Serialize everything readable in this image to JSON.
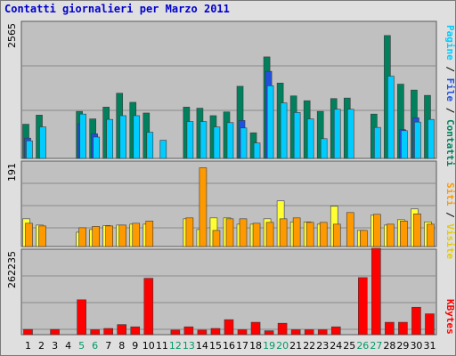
{
  "title": "Contatti giornalieri per Marzo 2011",
  "chart_data": [
    {
      "type": "bar",
      "panel": "top",
      "ymax_label": "2565",
      "right_label": {
        "pagine": "Pagine",
        "sep1": " / ",
        "file": "File",
        "sep2": " / ",
        "contatti": "Contatti"
      },
      "categories": [
        "1",
        "2",
        "3",
        "4",
        "5",
        "6",
        "7",
        "8",
        "9",
        "10",
        "11",
        "12",
        "13",
        "14",
        "15",
        "16",
        "17",
        "18",
        "19",
        "20",
        "21",
        "22",
        "23",
        "24",
        "25",
        "26",
        "27",
        "28",
        "29",
        "30",
        "31"
      ],
      "series": [
        {
          "name": "Contatti",
          "color": "#00805c",
          "values": [
            640,
            810,
            0,
            0,
            880,
            740,
            960,
            1220,
            1050,
            850,
            0,
            0,
            960,
            940,
            800,
            870,
            1350,
            480,
            1900,
            1410,
            1170,
            1080,
            880,
            1120,
            1130,
            0,
            830,
            2300,
            1390,
            1280,
            1180
          ]
        },
        {
          "name": "File",
          "color": "#2050e0",
          "values": [
            380,
            0,
            0,
            0,
            650,
            460,
            0,
            0,
            0,
            0,
            0,
            0,
            0,
            0,
            0,
            0,
            710,
            0,
            1630,
            0,
            0,
            0,
            0,
            0,
            0,
            0,
            0,
            0,
            540,
            760,
            0
          ]
        },
        {
          "name": "Pagine",
          "color": "#00ccff",
          "values": [
            330,
            590,
            0,
            0,
            830,
            400,
            730,
            800,
            800,
            490,
            340,
            0,
            690,
            690,
            590,
            670,
            570,
            290,
            1360,
            1040,
            860,
            740,
            370,
            920,
            920,
            0,
            580,
            1540,
            520,
            680,
            730
          ]
        }
      ]
    },
    {
      "type": "bar",
      "panel": "middle",
      "ymax_label": "191",
      "right_label": {
        "siti": "Siti",
        "sep": " / ",
        "visite": "Visite"
      },
      "categories": [
        "1",
        "2",
        "3",
        "4",
        "5",
        "6",
        "7",
        "8",
        "9",
        "10",
        "11",
        "12",
        "13",
        "14",
        "15",
        "16",
        "17",
        "18",
        "19",
        "20",
        "21",
        "22",
        "23",
        "24",
        "25",
        "26",
        "27",
        "28",
        "29",
        "30",
        "31"
      ],
      "series": [
        {
          "name": "Visite",
          "color": "#ffff33",
          "values": [
            62,
            48,
            0,
            0,
            32,
            38,
            47,
            48,
            50,
            50,
            0,
            0,
            62,
            38,
            64,
            64,
            50,
            50,
            62,
            102,
            55,
            55,
            50,
            90,
            0,
            36,
            70,
            48,
            60,
            84,
            55
          ]
        },
        {
          "name": "Siti",
          "color": "#ff9900",
          "values": [
            52,
            46,
            0,
            0,
            42,
            45,
            46,
            48,
            52,
            57,
            0,
            0,
            64,
            176,
            36,
            62,
            62,
            52,
            54,
            62,
            64,
            54,
            54,
            50,
            76,
            36,
            72,
            50,
            57,
            73,
            50
          ]
        }
      ]
    },
    {
      "type": "bar",
      "panel": "bottom",
      "ymax_label": "262235",
      "right_label": {
        "kbytes": "KBytes"
      },
      "categories": [
        "1",
        "2",
        "3",
        "4",
        "5",
        "6",
        "7",
        "8",
        "9",
        "10",
        "11",
        "12",
        "13",
        "14",
        "15",
        "16",
        "17",
        "18",
        "19",
        "20",
        "21",
        "22",
        "23",
        "24",
        "25",
        "26",
        "27",
        "28",
        "29",
        "30",
        "31"
      ],
      "series": [
        {
          "name": "KBytes",
          "color": "#ff0000",
          "values": [
            16000,
            0,
            16000,
            0,
            107000,
            15000,
            19000,
            31000,
            24000,
            173000,
            0,
            14000,
            24000,
            14000,
            19000,
            46000,
            15000,
            38000,
            12000,
            35000,
            15000,
            15000,
            15000,
            24000,
            0,
            175000,
            265000,
            38000,
            38000,
            84000,
            64000
          ]
        }
      ]
    }
  ],
  "x_ticks": [
    {
      "label": "1",
      "color": "#000000"
    },
    {
      "label": "2",
      "color": "#000000"
    },
    {
      "label": "3",
      "color": "#000000"
    },
    {
      "label": "4",
      "color": "#000000"
    },
    {
      "label": "5",
      "color": "#009966"
    },
    {
      "label": "6",
      "color": "#009966"
    },
    {
      "label": "7",
      "color": "#000000"
    },
    {
      "label": "8",
      "color": "#000000"
    },
    {
      "label": "9",
      "color": "#000000"
    },
    {
      "label": "10",
      "color": "#000000"
    },
    {
      "label": "11",
      "color": "#000000"
    },
    {
      "label": "12",
      "color": "#009966"
    },
    {
      "label": "13",
      "color": "#009966"
    },
    {
      "label": "14",
      "color": "#000000"
    },
    {
      "label": "15",
      "color": "#000000"
    },
    {
      "label": "16",
      "color": "#000000"
    },
    {
      "label": "17",
      "color": "#000000"
    },
    {
      "label": "18",
      "color": "#000000"
    },
    {
      "label": "19",
      "color": "#009966"
    },
    {
      "label": "20",
      "color": "#009966"
    },
    {
      "label": "21",
      "color": "#000000"
    },
    {
      "label": "22",
      "color": "#000000"
    },
    {
      "label": "23",
      "color": "#000000"
    },
    {
      "label": "24",
      "color": "#000000"
    },
    {
      "label": "25",
      "color": "#000000"
    },
    {
      "label": "26",
      "color": "#009966"
    },
    {
      "label": "27",
      "color": "#009966"
    },
    {
      "label": "28",
      "color": "#000000"
    },
    {
      "label": "29",
      "color": "#000000"
    },
    {
      "label": "30",
      "color": "#000000"
    },
    {
      "label": "31",
      "color": "#000000"
    }
  ],
  "colors": {
    "background": "#dfdfdf",
    "plot": "#c0c0c0",
    "gridline": "#8a8a8a",
    "title": "#0000cc"
  }
}
